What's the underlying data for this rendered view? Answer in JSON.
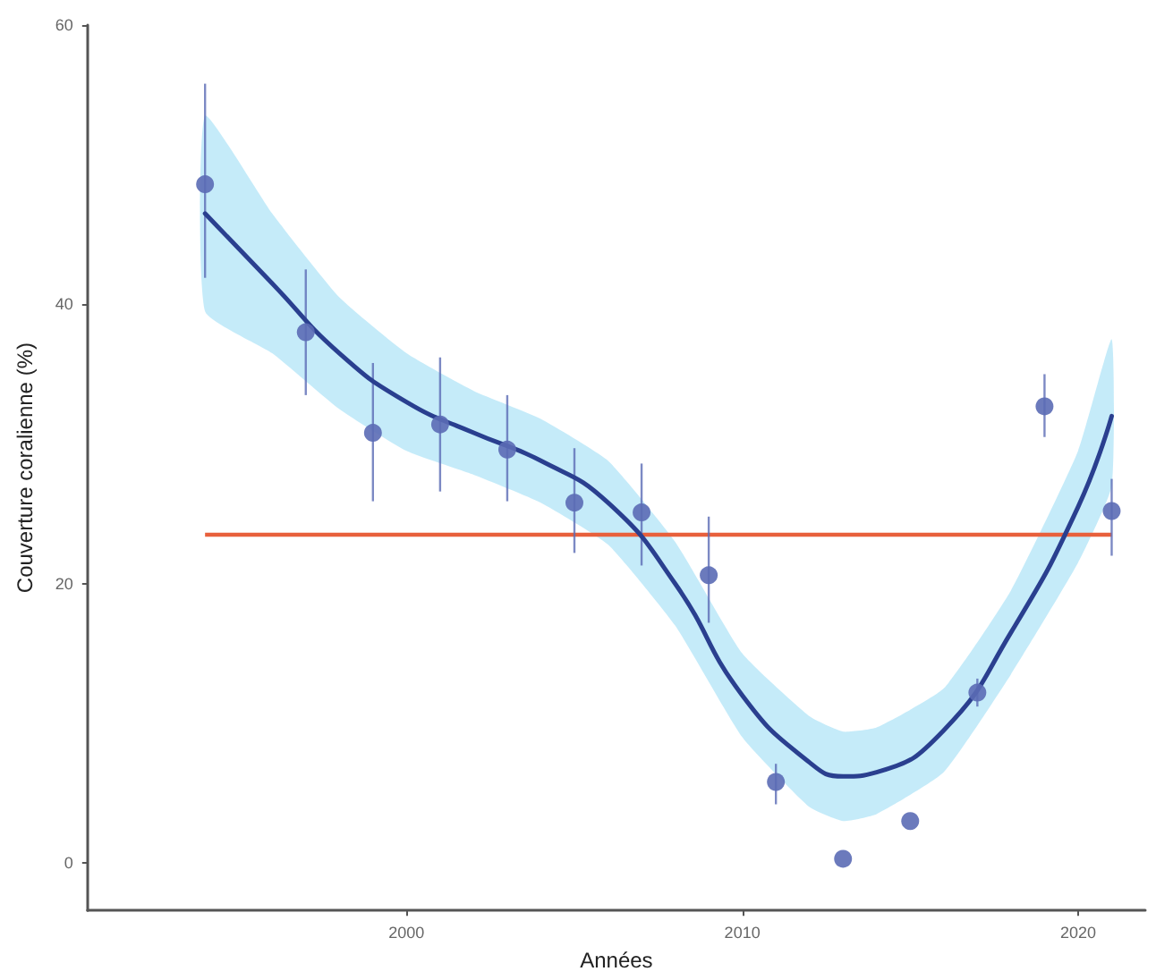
{
  "chart_data": {
    "type": "scatter",
    "xlabel": "Années",
    "ylabel": "Couverture coralienne (%)",
    "xlim": [
      1990.5,
      2022
    ],
    "xticks": [
      2000,
      2010,
      2020
    ],
    "ylim": [
      -3.4,
      60
    ],
    "yticks": [
      0,
      20,
      40,
      60
    ],
    "grid": false,
    "series": [
      {
        "type": "line",
        "color": "#2a3f8f",
        "marker": "none",
        "x": [
          1994,
          1996,
          1998,
          2000,
          2002,
          2004,
          2006,
          2008,
          2010,
          2012,
          2013,
          2014,
          2016,
          2018,
          2020,
          2021
        ],
        "values": [
          46.5,
          41.5,
          36.5,
          33.0,
          30.8,
          28.8,
          25.8,
          20.0,
          12.0,
          7.2,
          6.2,
          6.5,
          9.5,
          16.5,
          25.5,
          32.0
        ],
        "lower": [
          39.5,
          36.5,
          32.5,
          29.5,
          27.8,
          25.8,
          22.8,
          17.0,
          9.0,
          4.0,
          3.0,
          3.5,
          6.5,
          13.5,
          21.5,
          27.0
        ],
        "upper": [
          53.5,
          46.5,
          40.5,
          36.5,
          33.8,
          31.8,
          28.8,
          23.0,
          15.0,
          10.5,
          9.4,
          9.7,
          12.5,
          19.5,
          29.5,
          37.5
        ]
      },
      {
        "color": "#5b6bb5",
        "marker": "circle",
        "x": [
          1994,
          1997,
          1999,
          2001,
          2003,
          2005,
          2007,
          2009,
          2011,
          2013,
          2015,
          2017,
          2019,
          2021
        ],
        "values": [
          48.6,
          38.0,
          30.8,
          31.4,
          29.6,
          25.8,
          25.1,
          20.6,
          5.8,
          0.3,
          3.0,
          12.2,
          32.7,
          25.2
        ],
        "errors": [
          [
            41.9,
            55.8
          ],
          [
            33.5,
            42.5
          ],
          [
            25.9,
            35.8
          ],
          [
            26.6,
            36.2
          ],
          [
            25.9,
            33.5
          ],
          [
            22.2,
            29.7
          ],
          [
            21.3,
            28.6
          ],
          [
            17.2,
            24.8
          ],
          [
            4.2,
            7.1
          ],
          null,
          null,
          [
            11.2,
            13.2
          ],
          [
            30.5,
            35.0
          ],
          [
            22.0,
            27.5
          ]
        ]
      }
    ],
    "ref_lines": [
      {
        "axis": "y",
        "value": 23.5,
        "color": "#e8603c",
        "line_style": "solid"
      }
    ]
  }
}
